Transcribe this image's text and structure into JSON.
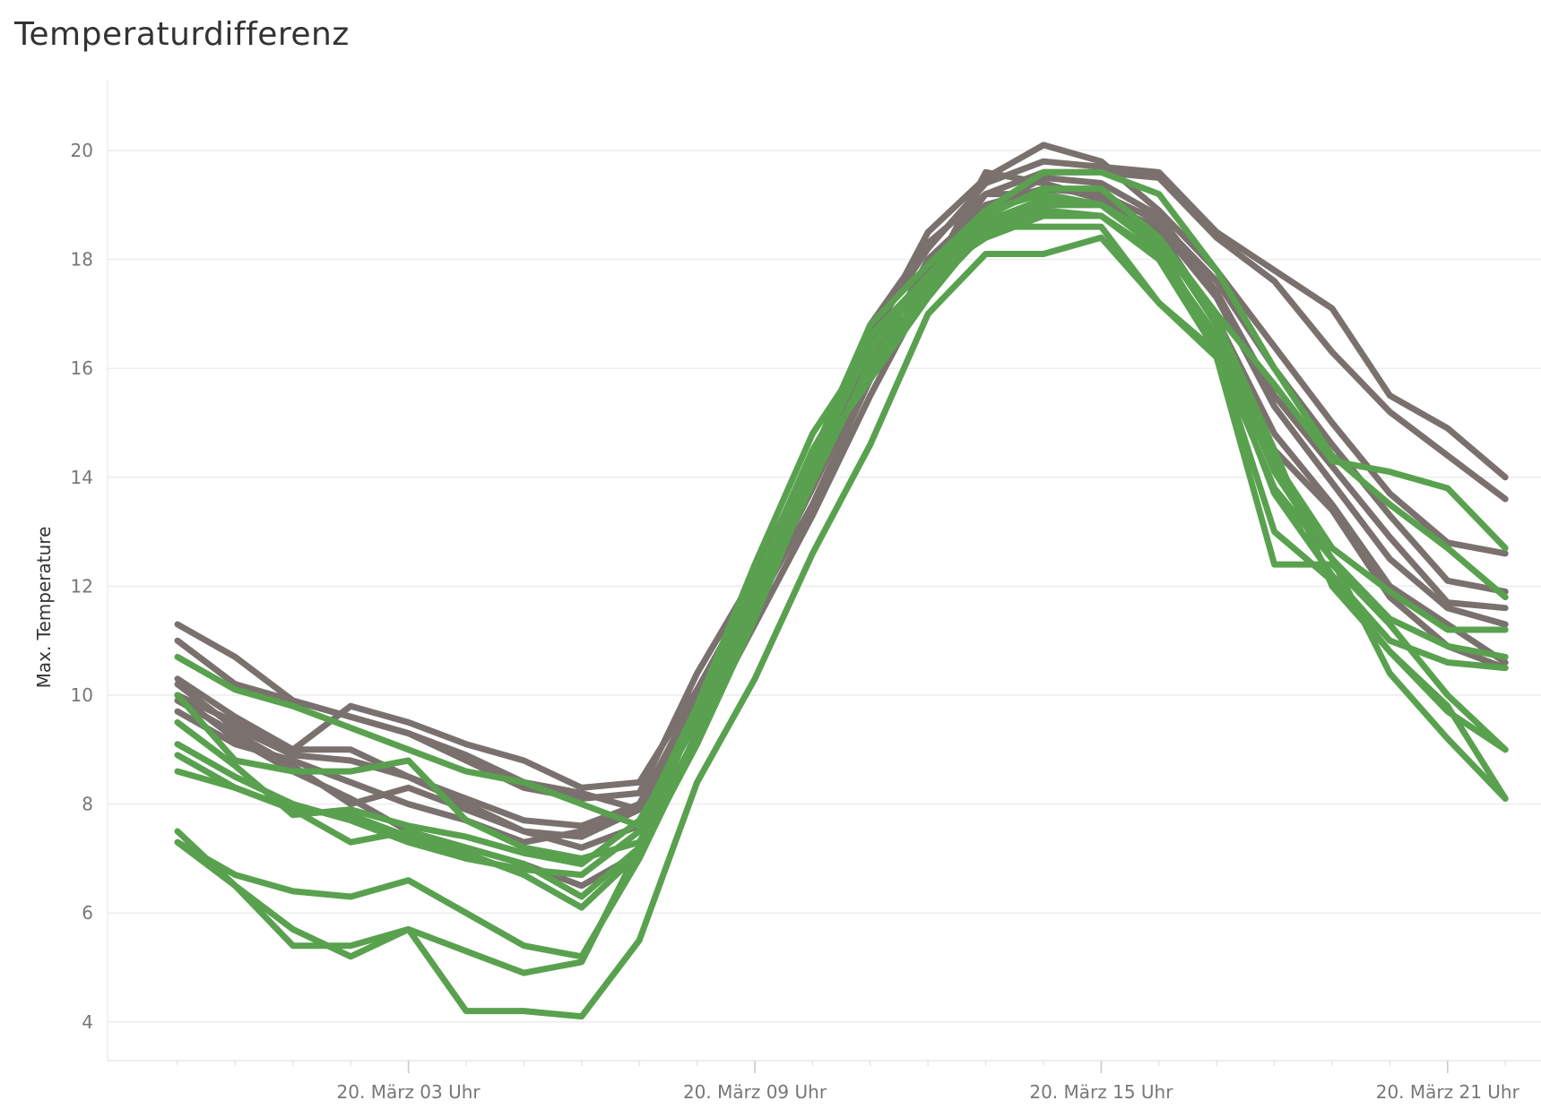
{
  "chart_data": {
    "type": "line",
    "title": "Temperaturdifferenz",
    "xlabel": "",
    "ylabel": "Max. Temperature",
    "x_tick_labels": [
      "20. März 03 Uhr",
      "20. März 09 Uhr",
      "20. März 15 Uhr",
      "20. März 21 Uhr"
    ],
    "x_tick_hours": [
      3,
      9,
      15,
      21
    ],
    "x_hours": [
      -1,
      0,
      1,
      2,
      3,
      4,
      5,
      6,
      7,
      8,
      9,
      10,
      11,
      12,
      13,
      14,
      15,
      16,
      17,
      18,
      19,
      20,
      21,
      22
    ],
    "ylim": [
      3.2,
      21.2
    ],
    "y_ticks": [
      4,
      6,
      8,
      10,
      12,
      14,
      16,
      18,
      20
    ],
    "grid": true,
    "legend": "none",
    "colors": {
      "gray": "#7a716e",
      "green": "#59a14f"
    },
    "series": [
      {
        "group": "gray",
        "values": [
          11.3,
          10.7,
          9.9,
          9.6,
          9.3,
          8.8,
          8.3,
          8.1,
          8.2,
          10.4,
          12.2,
          14.4,
          16.6,
          18.2,
          19.4,
          19.8,
          19.7,
          19.6,
          18.5,
          17.8,
          17.1,
          15.5,
          14.9,
          14.0
        ]
      },
      {
        "group": "gray",
        "values": [
          11.0,
          10.2,
          9.9,
          9.6,
          9.3,
          8.9,
          8.4,
          8.2,
          7.9,
          10.0,
          11.9,
          14.1,
          16.3,
          17.8,
          19.2,
          19.6,
          19.6,
          19.5,
          18.4,
          17.6,
          16.3,
          15.2,
          14.4,
          13.6
        ]
      },
      {
        "group": "gray",
        "values": [
          10.3,
          9.6,
          9.0,
          9.8,
          9.5,
          9.1,
          8.8,
          8.3,
          8.4,
          10.1,
          12.0,
          14.0,
          16.5,
          18.5,
          19.5,
          20.1,
          19.8,
          18.9,
          17.8,
          16.4,
          15.0,
          13.7,
          12.8,
          12.6
        ]
      },
      {
        "group": "gray",
        "values": [
          10.2,
          9.4,
          8.9,
          8.8,
          8.5,
          8.0,
          7.5,
          7.4,
          7.9,
          9.8,
          11.7,
          13.8,
          16.0,
          18.0,
          19.0,
          19.3,
          19.2,
          18.7,
          17.6,
          16.0,
          14.6,
          13.3,
          12.1,
          11.9
        ]
      },
      {
        "group": "gray",
        "values": [
          10.0,
          9.5,
          9.0,
          9.0,
          8.5,
          8.1,
          7.7,
          7.6,
          8.0,
          9.9,
          11.8,
          13.9,
          16.2,
          17.9,
          18.9,
          19.5,
          19.4,
          18.8,
          17.4,
          15.5,
          14.2,
          12.9,
          11.7,
          11.6
        ]
      },
      {
        "group": "gray",
        "values": [
          9.7,
          9.1,
          8.8,
          8.4,
          8.0,
          7.7,
          7.3,
          7.5,
          8.0,
          10.0,
          12.1,
          14.3,
          16.8,
          18.3,
          19.2,
          19.2,
          19.0,
          18.6,
          17.3,
          15.3,
          13.9,
          12.5,
          11.6,
          11.3
        ]
      },
      {
        "group": "gray",
        "values": [
          9.9,
          9.3,
          8.7,
          8.0,
          8.3,
          7.9,
          7.5,
          7.2,
          7.6,
          9.6,
          11.6,
          13.5,
          15.8,
          17.6,
          19.6,
          19.4,
          19.1,
          18.5,
          16.9,
          14.8,
          13.5,
          12.0,
          11.3,
          10.6
        ]
      },
      {
        "group": "gray",
        "values": [
          10.0,
          9.2,
          8.6,
          8.1,
          7.5,
          7.2,
          6.9,
          6.5,
          7.1,
          9.3,
          11.3,
          13.3,
          15.5,
          17.5,
          18.5,
          19.0,
          19.0,
          18.4,
          16.8,
          14.5,
          13.4,
          11.8,
          10.9,
          10.5
        ]
      },
      {
        "group": "green",
        "values": [
          10.7,
          10.1,
          9.8,
          9.4,
          9.0,
          8.6,
          8.4,
          8.0,
          7.6,
          9.8,
          12.4,
          14.8,
          16.4,
          17.7,
          18.9,
          19.6,
          19.6,
          19.2,
          17.8,
          16.0,
          14.4,
          13.5,
          12.7,
          11.8
        ]
      },
      {
        "group": "green",
        "values": [
          10.0,
          8.8,
          8.6,
          8.6,
          8.8,
          7.7,
          7.2,
          7.0,
          7.3,
          9.2,
          11.6,
          13.9,
          16.1,
          17.5,
          18.8,
          19.3,
          19.3,
          18.4,
          17.0,
          15.7,
          14.3,
          14.1,
          13.8,
          12.7
        ]
      },
      {
        "group": "green",
        "values": [
          9.5,
          8.7,
          7.8,
          7.9,
          7.6,
          7.4,
          7.1,
          6.9,
          7.7,
          9.5,
          11.9,
          14.3,
          15.8,
          17.3,
          18.6,
          19.0,
          19.0,
          18.4,
          16.8,
          14.3,
          12.7,
          11.9,
          11.2,
          11.2
        ]
      },
      {
        "group": "green",
        "values": [
          9.1,
          8.5,
          8.0,
          7.7,
          7.3,
          7.0,
          6.8,
          6.7,
          7.5,
          9.6,
          12.1,
          14.5,
          16.3,
          17.7,
          18.4,
          18.8,
          18.8,
          18.1,
          16.6,
          14.1,
          12.5,
          11.4,
          10.9,
          10.7
        ]
      },
      {
        "group": "green",
        "values": [
          8.9,
          8.3,
          7.9,
          7.3,
          7.5,
          7.2,
          6.9,
          6.3,
          7.2,
          9.3,
          11.8,
          14.3,
          16.6,
          17.7,
          18.7,
          19.1,
          19.0,
          18.2,
          16.5,
          13.7,
          12.2,
          11.0,
          10.6,
          10.5
        ]
      },
      {
        "group": "green",
        "values": [
          8.6,
          8.3,
          7.9,
          7.8,
          7.4,
          7.1,
          6.7,
          6.1,
          7.1,
          9.1,
          11.4,
          14.0,
          16.0,
          17.4,
          18.5,
          18.9,
          18.8,
          18.0,
          16.3,
          13.0,
          12.1,
          10.8,
          9.8,
          8.1
        ]
      },
      {
        "group": "green",
        "values": [
          7.5,
          6.5,
          5.4,
          5.4,
          5.7,
          4.2,
          4.2,
          4.1,
          5.5,
          8.4,
          10.3,
          12.6,
          14.6,
          17.0,
          18.1,
          18.1,
          18.4,
          17.2,
          16.3,
          13.8,
          12.5,
          10.4,
          9.2,
          8.1
        ]
      },
      {
        "group": "green",
        "values": [
          7.3,
          6.7,
          6.4,
          6.3,
          6.6,
          6.0,
          5.4,
          5.2,
          7.0,
          9.2,
          11.7,
          14.2,
          16.4,
          17.6,
          18.6,
          18.6,
          18.6,
          17.2,
          16.2,
          12.4,
          12.4,
          11.3,
          10.0,
          9.0
        ]
      },
      {
        "group": "green",
        "values": [
          7.3,
          6.5,
          5.7,
          5.2,
          5.7,
          5.3,
          4.9,
          5.1,
          7.2,
          9.7,
          12.0,
          14.4,
          16.8,
          17.9,
          18.9,
          19.2,
          19.0,
          18.3,
          16.9,
          14.5,
          12.0,
          10.8,
          9.7,
          9.0
        ]
      }
    ]
  }
}
